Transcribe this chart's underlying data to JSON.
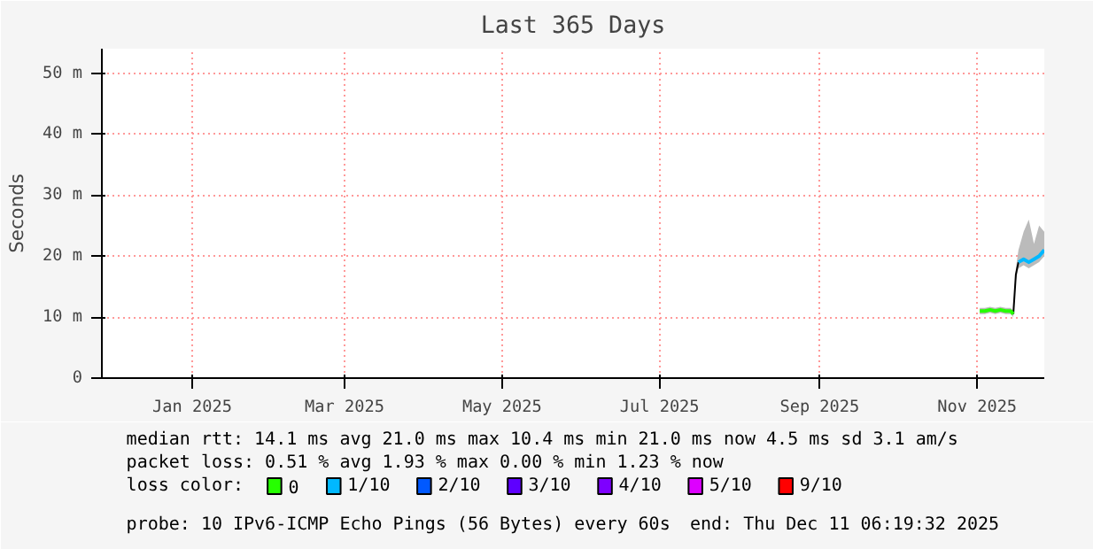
{
  "chart_data": {
    "type": "line",
    "title": "Last 365 Days",
    "ylabel": "Seconds",
    "xlim": [
      "2024-12-11",
      "2025-12-11"
    ],
    "xticks": [
      {
        "value": "2025-01-15",
        "label": "Jan 2025"
      },
      {
        "value": "2025-03-15",
        "label": "Mar 2025"
      },
      {
        "value": "2025-05-15",
        "label": "May 2025"
      },
      {
        "value": "2025-07-15",
        "label": "Jul 2025"
      },
      {
        "value": "2025-09-15",
        "label": "Sep 2025"
      },
      {
        "value": "2025-11-15",
        "label": "Nov 2025"
      }
    ],
    "ylim": [
      0,
      54
    ],
    "yticks": [
      0,
      {
        "value": 10,
        "label": "10 m"
      },
      {
        "value": 20,
        "label": "20 m"
      },
      {
        "value": 30,
        "label": "30 m"
      },
      {
        "value": 40,
        "label": "40 m"
      },
      {
        "value": 50,
        "label": "50 m"
      }
    ],
    "x": [
      "2025-11-16",
      "2025-11-18",
      "2025-11-20",
      "2025-11-22",
      "2025-11-24",
      "2025-11-26",
      "2025-11-28",
      "2025-11-29",
      "2025-11-30",
      "2025-12-01",
      "2025-12-03",
      "2025-12-05",
      "2025-12-07",
      "2025-12-09",
      "2025-12-11"
    ],
    "series": [
      {
        "color": "#000000",
        "values": [
          null,
          null,
          null,
          null,
          null,
          null,
          null,
          10.5,
          17,
          19,
          null,
          null,
          null,
          null,
          null
        ],
        "lower": [
          10.5,
          10.5,
          10.7,
          10.5,
          10.7,
          10.5,
          10.5,
          10,
          16,
          18,
          18.5,
          18,
          18.5,
          19,
          20
        ],
        "upper": [
          11.5,
          11.5,
          11.7,
          11.5,
          11.7,
          11.5,
          11.5,
          11,
          18,
          21,
          24,
          26,
          22,
          25,
          24
        ]
      },
      {
        "name": "0",
        "color": "#26ff00",
        "values": [
          11,
          11,
          11.2,
          11,
          11.2,
          11,
          11,
          10.5,
          null,
          null,
          null,
          null,
          null,
          null,
          null
        ]
      },
      {
        "name": "1/10",
        "color": "#00b8ff",
        "values": [
          null,
          null,
          null,
          null,
          null,
          null,
          null,
          null,
          null,
          19,
          19.5,
          19,
          19.5,
          20,
          21
        ]
      },
      {
        "name": "2/10",
        "color": "#0059ff",
        "values": [
          null,
          null,
          null,
          null,
          null,
          null,
          null,
          null,
          null,
          null,
          null,
          null,
          null,
          null,
          null
        ]
      },
      {
        "name": "3/10",
        "color": "#5e00ff",
        "values": [
          null,
          null,
          null,
          null,
          null,
          null,
          null,
          null,
          null,
          null,
          null,
          null,
          null,
          null,
          null
        ]
      },
      {
        "name": "4/10",
        "color": "#7e00ff",
        "values": [
          null,
          null,
          null,
          null,
          null,
          null,
          null,
          null,
          null,
          null,
          null,
          null,
          null,
          null,
          null
        ]
      },
      {
        "name": "5/10",
        "color": "#dd00ff",
        "values": [
          null,
          null,
          null,
          null,
          null,
          null,
          null,
          null,
          null,
          null,
          null,
          null,
          null,
          null,
          null
        ]
      },
      {
        "name": "9/10",
        "color": "#ff0000",
        "values": [
          null,
          null,
          null,
          null,
          null,
          null,
          null,
          null,
          null,
          null,
          null,
          null,
          null,
          null,
          null
        ]
      }
    ],
    "legend_title": "loss color:",
    "legend": "bottom",
    "grid": true,
    "annotations": [
      "median rtt:  14.1 ms avg  21.0 ms max  10.4 ms min  21.0 ms now  4.5 ms sd  3.1  am/s",
      "packet loss: 0.51 % avg  1.93 % max  0.00 % min  1.23 % now",
      "probe:  10 IPv6-ICMP Echo Pings (56 Bytes) every 60s",
      "end: Thu Dec 11 06:19:32 2025"
    ]
  }
}
